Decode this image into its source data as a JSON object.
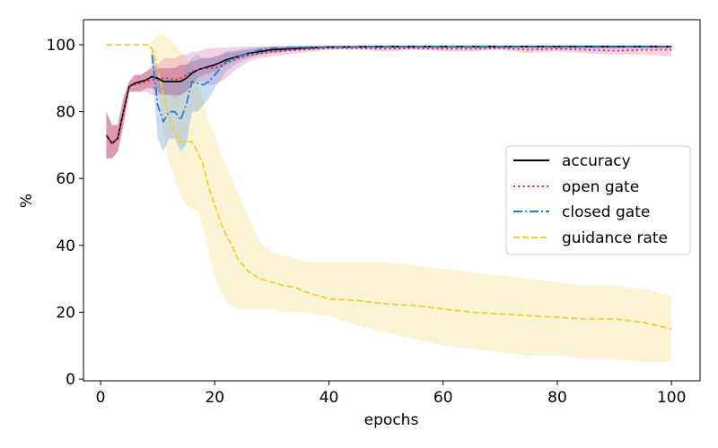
{
  "chart_data": {
    "type": "line",
    "title": "",
    "xlabel": "epochs",
    "ylabel": "%",
    "xlim": [
      -3,
      105
    ],
    "ylim": [
      -0.5,
      107.5
    ],
    "xticks": [
      0,
      20,
      40,
      60,
      80,
      100
    ],
    "yticks": [
      0,
      20,
      40,
      60,
      80,
      100
    ],
    "legend_position": "center-right",
    "series": [
      {
        "name": "accuracy",
        "color": "#000000",
        "style": "solid",
        "band_color": "#8b1a3e",
        "x": [
          1,
          2,
          3,
          4,
          5,
          6,
          7,
          8,
          9,
          10,
          11,
          12,
          13,
          14,
          15,
          16,
          17,
          18,
          19,
          20,
          22,
          24,
          26,
          28,
          30,
          35,
          40,
          50,
          60,
          70,
          80,
          90,
          100
        ],
        "y": [
          73,
          70.5,
          72,
          80,
          87.5,
          88.5,
          89,
          89.5,
          90.5,
          90,
          89,
          89,
          89,
          89,
          90,
          91.5,
          92.5,
          93,
          93.5,
          94,
          95.5,
          96.5,
          97.5,
          98,
          98.5,
          99,
          99.3,
          99.5,
          99.5,
          99.5,
          99.5,
          99.5,
          99.5
        ],
        "lower": [
          66,
          66,
          68,
          76,
          86,
          86,
          86,
          87,
          87,
          86,
          85,
          85,
          85,
          85,
          86,
          88,
          90,
          91,
          91.5,
          92,
          94,
          95.5,
          96.5,
          97,
          97.5,
          98.5,
          99,
          99,
          99,
          99,
          99,
          99,
          99
        ],
        "upper": [
          80,
          76,
          76,
          84,
          89,
          91,
          91,
          92,
          93,
          93,
          93,
          93,
          93,
          94,
          94,
          95,
          95.5,
          96,
          96,
          96.5,
          97.5,
          98,
          98.5,
          99,
          99.3,
          99.6,
          99.7,
          99.8,
          99.8,
          99.8,
          99.8,
          99.8,
          99.8
        ]
      },
      {
        "name": "open gate",
        "color": "#dc143c",
        "style": "dotted",
        "band_color": "#e889b8",
        "x": [
          1,
          2,
          3,
          4,
          5,
          6,
          7,
          8,
          9,
          10,
          11,
          12,
          13,
          14,
          15,
          16,
          17,
          18,
          19,
          20,
          22,
          24,
          26,
          28,
          30,
          35,
          40,
          45,
          50,
          55,
          60,
          65,
          70,
          75,
          80,
          85,
          90,
          95,
          100
        ],
        "y": [
          73,
          70.5,
          72,
          80,
          87.5,
          88,
          88.5,
          89,
          89.5,
          89.5,
          90,
          90,
          89.5,
          90,
          91,
          92,
          92.5,
          93,
          93,
          93,
          94.5,
          96,
          97,
          97.5,
          98,
          98.5,
          99,
          99,
          98.8,
          99,
          98.8,
          98.8,
          99,
          98.5,
          98.8,
          98.5,
          98.2,
          98.5,
          98.5
        ],
        "lower": [
          66,
          66,
          68,
          76,
          86,
          86,
          86,
          86,
          85,
          85,
          85,
          85,
          84,
          85,
          86,
          88,
          89,
          89,
          88,
          88,
          90,
          93,
          95,
          96,
          96.5,
          97.5,
          98.5,
          98.5,
          98,
          98.5,
          98,
          98,
          98.5,
          97.5,
          98,
          97.5,
          97,
          97,
          96.5
        ],
        "upper": [
          80,
          76,
          76,
          84,
          89,
          91,
          91,
          92,
          94,
          94,
          96,
          96,
          96,
          97,
          97,
          98,
          98,
          98.5,
          99,
          99,
          99.2,
          99.4,
          99.5,
          99.5,
          99.6,
          99.6,
          99.7,
          99.7,
          99.7,
          99.7,
          99.7,
          99.7,
          99.7,
          99.7,
          99.7,
          99.7,
          99.7,
          99.7,
          99.7
        ]
      },
      {
        "name": "closed gate",
        "color": "#1e7fd6",
        "style": "dashdot",
        "band_color": "#7fa8d8",
        "x": [
          9,
          10,
          11,
          12,
          13,
          14,
          15,
          16,
          17,
          18,
          19,
          20,
          22,
          24,
          26,
          28,
          30,
          35,
          40,
          50,
          60,
          70,
          80,
          90,
          100
        ],
        "y": [
          97,
          82,
          77,
          80,
          80,
          77.5,
          82,
          89,
          88.5,
          88,
          89,
          91,
          95,
          96.5,
          97.5,
          98.5,
          99,
          99.2,
          99.3,
          99.5,
          99.5,
          99.5,
          99.4,
          99.4,
          99.5
        ],
        "lower": [
          94,
          72,
          68,
          72,
          72,
          68,
          70,
          80,
          80,
          82,
          84,
          87,
          92,
          94.5,
          96,
          97,
          98,
          98.5,
          99,
          99,
          99,
          99,
          98.8,
          98.8,
          99
        ],
        "upper": [
          99,
          92,
          90,
          90,
          90,
          88,
          94,
          96,
          97,
          96,
          96,
          96,
          98,
          98.5,
          99,
          99.3,
          99.5,
          99.7,
          99.8,
          99.8,
          99.8,
          99.8,
          99.8,
          99.8,
          99.8
        ]
      },
      {
        "name": "guidance rate",
        "color": "#f5cc2e",
        "style": "dashed",
        "band_color": "#f7e7a0",
        "x": [
          1,
          2,
          3,
          4,
          5,
          6,
          7,
          8,
          9,
          10,
          11,
          12,
          13,
          14,
          15,
          16,
          17,
          18,
          19,
          20,
          21,
          22,
          23,
          24,
          25,
          26,
          27,
          28,
          30,
          32,
          34,
          36,
          38,
          40,
          45,
          50,
          55,
          60,
          65,
          70,
          75,
          80,
          85,
          90,
          95,
          100
        ],
        "y": [
          100,
          100,
          100,
          100,
          100,
          100,
          100,
          100,
          99,
          93,
          85,
          78,
          74,
          71,
          71,
          71,
          68,
          64,
          57,
          52,
          47,
          43,
          40,
          36,
          34,
          32,
          31,
          30,
          29,
          28,
          27.5,
          26,
          25,
          24,
          23.5,
          22.5,
          22,
          21,
          20,
          19.5,
          19,
          18.5,
          18,
          18,
          17,
          15
        ],
        "lower": [
          100,
          100,
          100,
          100,
          100,
          100,
          100,
          100,
          97,
          87,
          73,
          65,
          60,
          55,
          52,
          51,
          50,
          45,
          37,
          31,
          26,
          23,
          22,
          21,
          21,
          21,
          21,
          21,
          21,
          20,
          20,
          20,
          19,
          19,
          16,
          14,
          12,
          10,
          9,
          8,
          7,
          7,
          6,
          6,
          5,
          5
        ],
        "upper": [
          100,
          100,
          100,
          100,
          100,
          100,
          100,
          100,
          101,
          103,
          103,
          102,
          100,
          98,
          96,
          94,
          89,
          83,
          77,
          73,
          68,
          64,
          60,
          56,
          52,
          48,
          44,
          41,
          38,
          37,
          36,
          35,
          35,
          35,
          35,
          35,
          34,
          33,
          32,
          31,
          30,
          29,
          28,
          28,
          27,
          25
        ]
      }
    ]
  }
}
